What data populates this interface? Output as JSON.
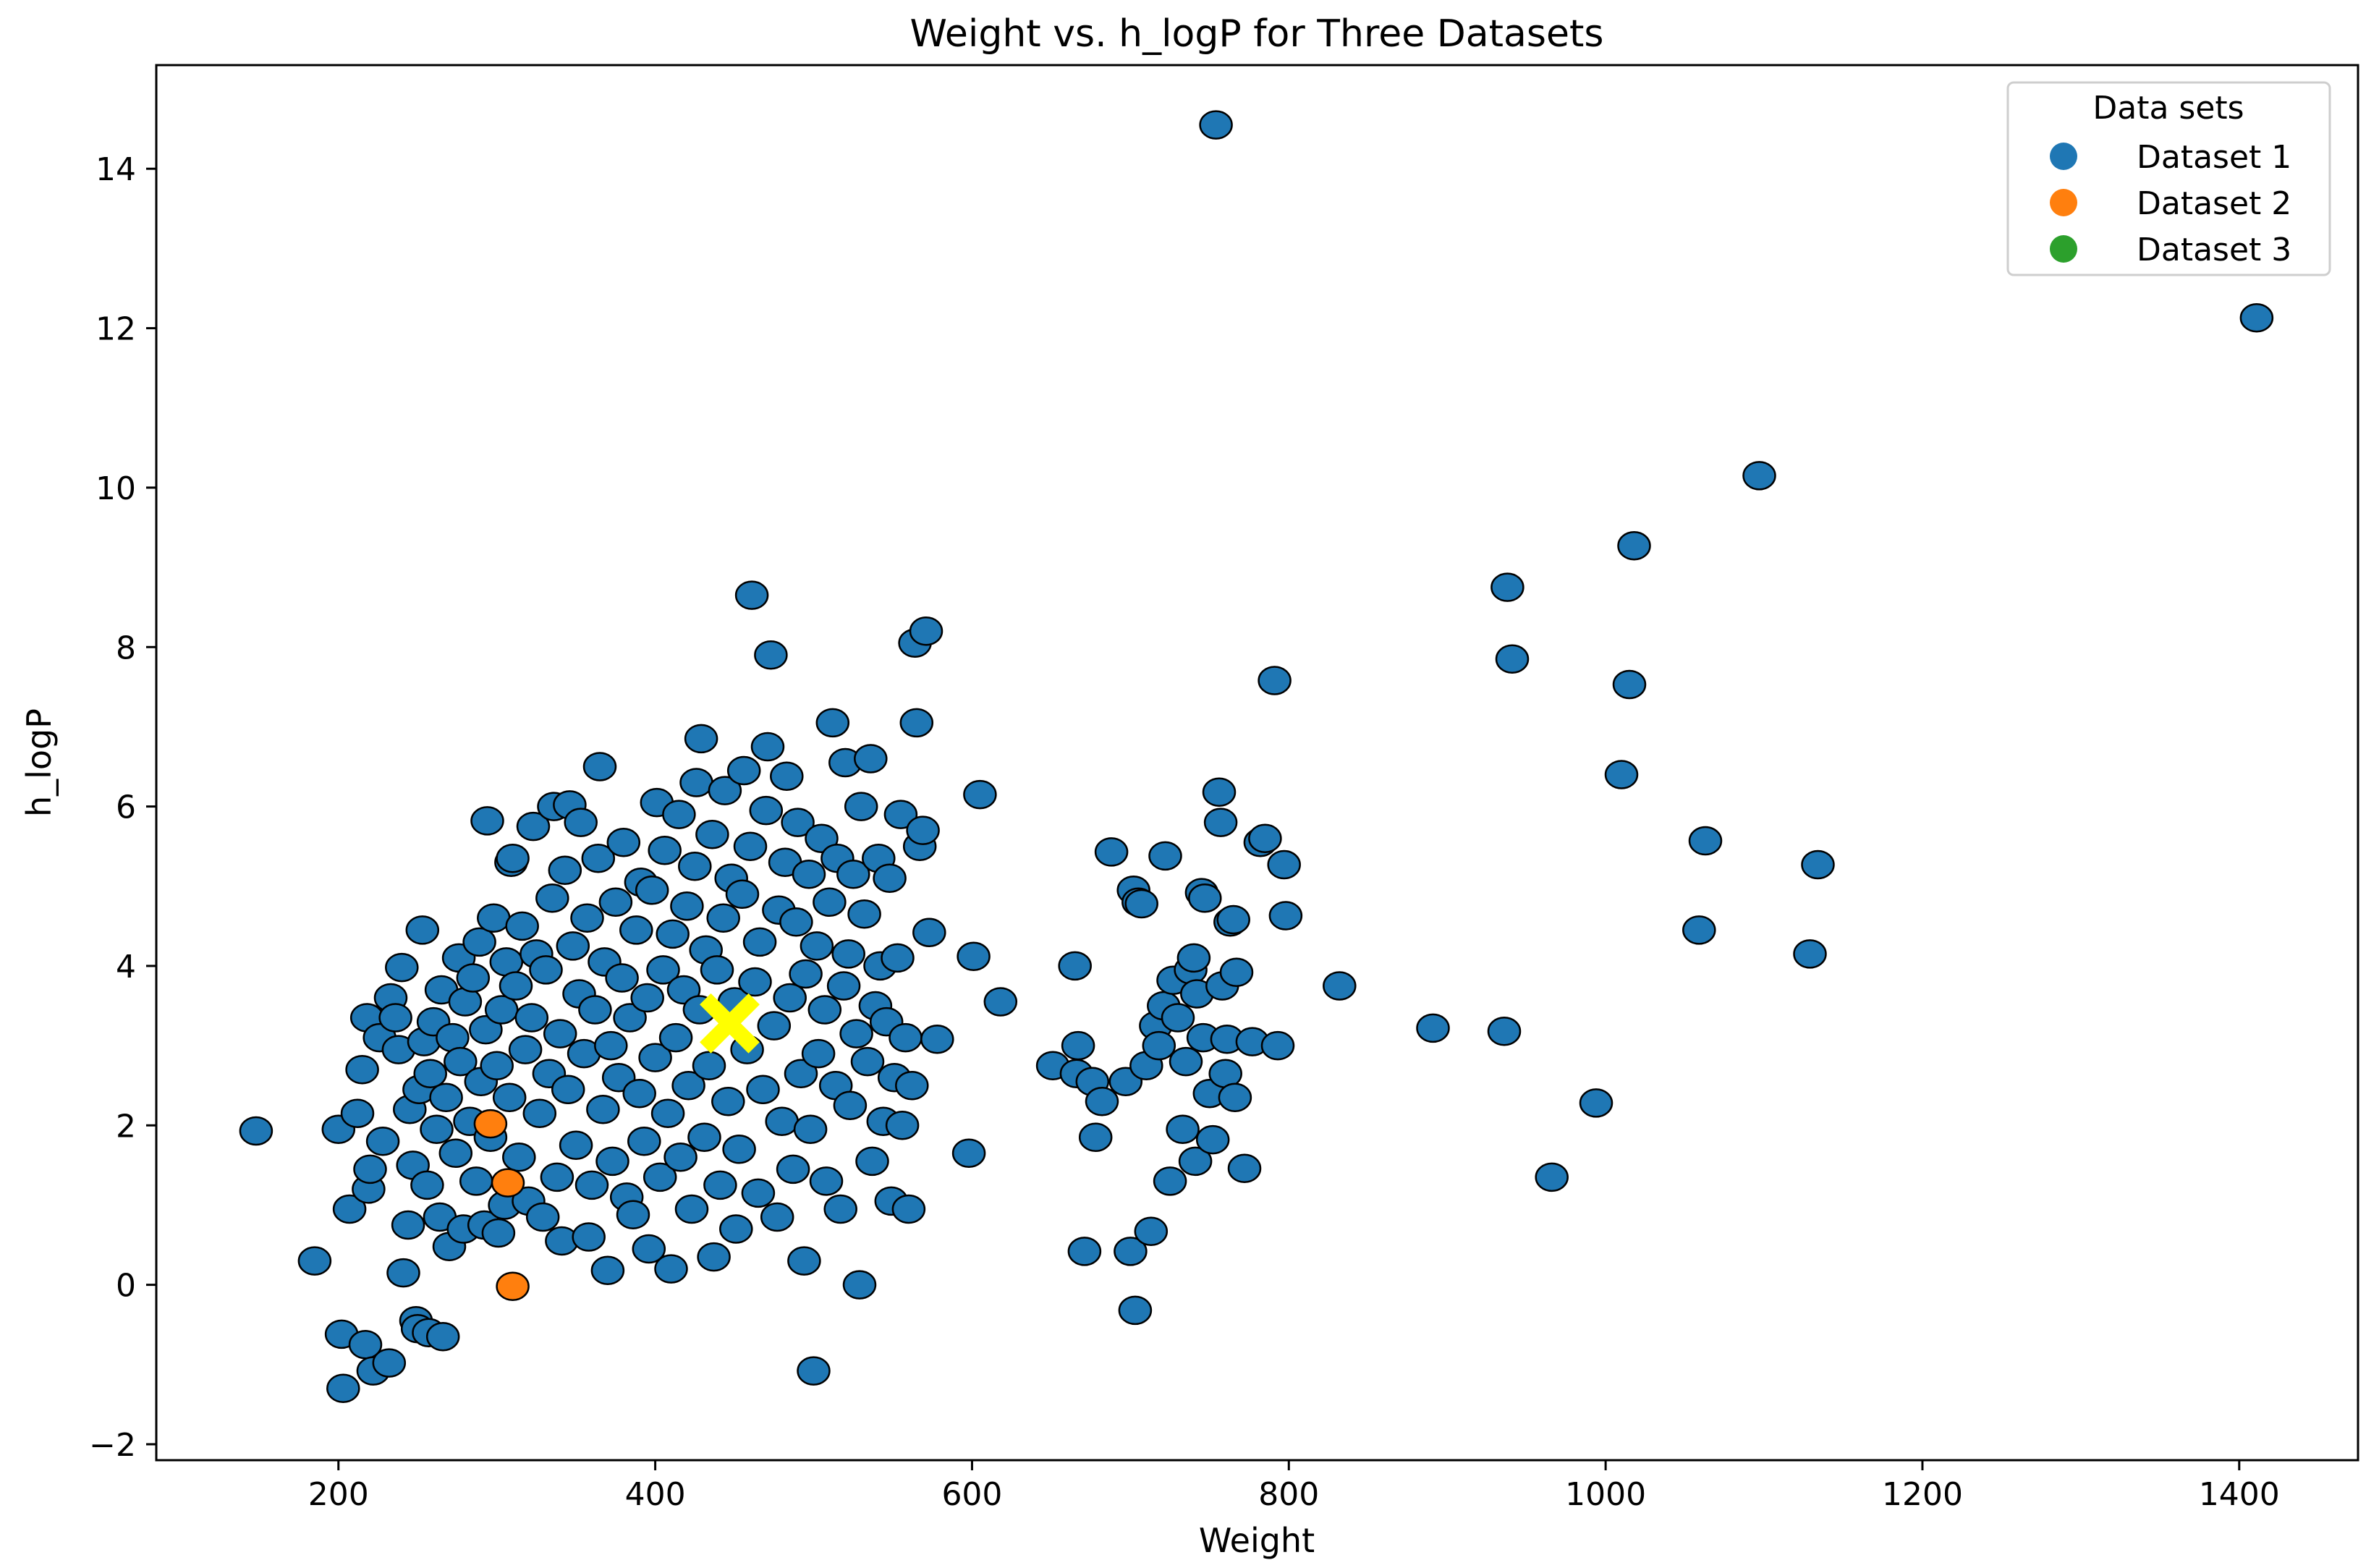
{
  "chart_data": {
    "type": "scatter",
    "title": "Weight vs. h_logP for Three Datasets",
    "xlabel": "Weight",
    "ylabel": "h_logP",
    "xlim": [
      85,
      1475
    ],
    "ylim": [
      -2.2,
      15.3
    ],
    "xticks": [
      200,
      400,
      600,
      800,
      1000,
      1200,
      1400
    ],
    "yticks": [
      -2,
      0,
      2,
      4,
      6,
      8,
      10,
      12,
      14
    ],
    "grid": false,
    "legend": {
      "title": "Data sets",
      "placement": "top-right"
    },
    "series": [
      {
        "name": "Dataset 1",
        "color": "#1f77b4",
        "points": [
          [
            148,
            1.93
          ],
          [
            185,
            0.3
          ],
          [
            200,
            1.95
          ],
          [
            202,
            -0.62
          ],
          [
            203,
            -1.3
          ],
          [
            207,
            0.95
          ],
          [
            212,
            2.15
          ],
          [
            215,
            2.7
          ],
          [
            217,
            -0.75
          ],
          [
            218,
            3.35
          ],
          [
            219,
            1.2
          ],
          [
            220,
            1.45
          ],
          [
            222,
            -1.08
          ],
          [
            226,
            3.1
          ],
          [
            228,
            1.8
          ],
          [
            232,
            -0.98
          ],
          [
            233,
            3.6
          ],
          [
            236,
            3.35
          ],
          [
            238,
            2.95
          ],
          [
            240,
            3.98
          ],
          [
            241,
            0.15
          ],
          [
            244,
            0.75
          ],
          [
            245,
            2.2
          ],
          [
            247,
            1.5
          ],
          [
            249,
            -0.45
          ],
          [
            250,
            -0.55
          ],
          [
            251,
            2.45
          ],
          [
            253,
            4.45
          ],
          [
            254,
            3.05
          ],
          [
            256,
            1.25
          ],
          [
            257,
            -0.6
          ],
          [
            258,
            2.65
          ],
          [
            260,
            3.3
          ],
          [
            262,
            1.95
          ],
          [
            264,
            0.85
          ],
          [
            265,
            3.7
          ],
          [
            266,
            -0.65
          ],
          [
            268,
            2.35
          ],
          [
            270,
            0.48
          ],
          [
            272,
            3.1
          ],
          [
            274,
            1.65
          ],
          [
            276,
            4.1
          ],
          [
            277,
            2.8
          ],
          [
            279,
            0.7
          ],
          [
            280,
            3.55
          ],
          [
            283,
            2.05
          ],
          [
            285,
            3.85
          ],
          [
            287,
            1.3
          ],
          [
            289,
            4.3
          ],
          [
            290,
            2.55
          ],
          [
            292,
            0.75
          ],
          [
            293,
            3.2
          ],
          [
            294,
            5.82
          ],
          [
            296,
            1.85
          ],
          [
            298,
            4.6
          ],
          [
            300,
            2.75
          ],
          [
            301,
            0.65
          ],
          [
            303,
            3.45
          ],
          [
            305,
            1.0
          ],
          [
            306,
            4.05
          ],
          [
            308,
            2.35
          ],
          [
            309,
            5.3
          ],
          [
            310,
            5.35
          ],
          [
            312,
            3.75
          ],
          [
            314,
            1.6
          ],
          [
            316,
            4.5
          ],
          [
            318,
            2.95
          ],
          [
            320,
            1.05
          ],
          [
            322,
            3.35
          ],
          [
            323,
            5.75
          ],
          [
            325,
            4.15
          ],
          [
            327,
            2.15
          ],
          [
            329,
            0.85
          ],
          [
            331,
            3.95
          ],
          [
            333,
            2.65
          ],
          [
            335,
            4.85
          ],
          [
            336,
            6.0
          ],
          [
            338,
            1.35
          ],
          [
            340,
            3.15
          ],
          [
            341,
            0.55
          ],
          [
            343,
            5.2
          ],
          [
            345,
            2.45
          ],
          [
            346,
            6.02
          ],
          [
            348,
            4.25
          ],
          [
            350,
            1.75
          ],
          [
            352,
            3.65
          ],
          [
            353,
            5.8
          ],
          [
            355,
            2.9
          ],
          [
            357,
            4.6
          ],
          [
            358,
            0.6
          ],
          [
            360,
            1.25
          ],
          [
            362,
            3.45
          ],
          [
            364,
            5.35
          ],
          [
            365,
            6.5
          ],
          [
            367,
            2.2
          ],
          [
            368,
            4.05
          ],
          [
            370,
            0.18
          ],
          [
            372,
            3.0
          ],
          [
            373,
            1.55
          ],
          [
            375,
            4.8
          ],
          [
            377,
            2.6
          ],
          [
            379,
            3.85
          ],
          [
            380,
            5.55
          ],
          [
            382,
            1.1
          ],
          [
            384,
            3.35
          ],
          [
            386,
            0.88
          ],
          [
            388,
            4.45
          ],
          [
            390,
            2.4
          ],
          [
            391,
            5.05
          ],
          [
            393,
            1.8
          ],
          [
            395,
            3.6
          ],
          [
            396,
            0.45
          ],
          [
            398,
            4.95
          ],
          [
            400,
            2.85
          ],
          [
            401,
            6.05
          ],
          [
            403,
            1.35
          ],
          [
            405,
            3.95
          ],
          [
            406,
            5.45
          ],
          [
            408,
            2.15
          ],
          [
            410,
            0.2
          ],
          [
            411,
            4.4
          ],
          [
            413,
            3.1
          ],
          [
            415,
            5.9
          ],
          [
            416,
            1.6
          ],
          [
            418,
            3.7
          ],
          [
            420,
            4.75
          ],
          [
            421,
            2.5
          ],
          [
            423,
            0.95
          ],
          [
            425,
            5.25
          ],
          [
            426,
            6.3
          ],
          [
            428,
            3.45
          ],
          [
            429,
            6.85
          ],
          [
            431,
            1.85
          ],
          [
            432,
            4.2
          ],
          [
            434,
            2.75
          ],
          [
            436,
            5.65
          ],
          [
            437,
            0.35
          ],
          [
            439,
            3.95
          ],
          [
            441,
            1.25
          ],
          [
            443,
            4.6
          ],
          [
            444,
            6.2
          ],
          [
            446,
            2.3
          ],
          [
            448,
            5.1
          ],
          [
            450,
            3.55
          ],
          [
            451,
            0.7
          ],
          [
            453,
            1.7
          ],
          [
            455,
            4.9
          ],
          [
            456,
            6.45
          ],
          [
            458,
            2.95
          ],
          [
            460,
            5.5
          ],
          [
            461,
            8.65
          ],
          [
            463,
            3.8
          ],
          [
            465,
            1.15
          ],
          [
            466,
            4.3
          ],
          [
            468,
            2.45
          ],
          [
            470,
            5.95
          ],
          [
            471,
            6.75
          ],
          [
            473,
            7.9
          ],
          [
            475,
            3.25
          ],
          [
            477,
            0.85
          ],
          [
            478,
            4.7
          ],
          [
            480,
            2.05
          ],
          [
            482,
            5.3
          ],
          [
            483,
            6.38
          ],
          [
            485,
            3.6
          ],
          [
            487,
            1.45
          ],
          [
            489,
            4.55
          ],
          [
            490,
            5.8
          ],
          [
            492,
            2.65
          ],
          [
            494,
            0.3
          ],
          [
            495,
            3.9
          ],
          [
            497,
            5.15
          ],
          [
            498,
            1.95
          ],
          [
            500,
            -1.08
          ],
          [
            502,
            4.25
          ],
          [
            503,
            2.9
          ],
          [
            505,
            5.6
          ],
          [
            507,
            3.45
          ],
          [
            508,
            1.3
          ],
          [
            510,
            4.8
          ],
          [
            512,
            7.05
          ],
          [
            514,
            2.5
          ],
          [
            515,
            5.35
          ],
          [
            517,
            0.95
          ],
          [
            519,
            3.75
          ],
          [
            520,
            6.55
          ],
          [
            522,
            4.15
          ],
          [
            523,
            2.25
          ],
          [
            525,
            5.15
          ],
          [
            527,
            3.15
          ],
          [
            529,
            0.0
          ],
          [
            530,
            6.0
          ],
          [
            532,
            4.65
          ],
          [
            534,
            2.8
          ],
          [
            536,
            6.6
          ],
          [
            537,
            1.55
          ],
          [
            539,
            3.5
          ],
          [
            541,
            5.35
          ],
          [
            542,
            4.0
          ],
          [
            544,
            2.05
          ],
          [
            546,
            3.3
          ],
          [
            548,
            5.1
          ],
          [
            549,
            1.05
          ],
          [
            551,
            2.6
          ],
          [
            553,
            4.1
          ],
          [
            555,
            5.9
          ],
          [
            556,
            2.0
          ],
          [
            558,
            3.1
          ],
          [
            560,
            0.95
          ],
          [
            562,
            2.5
          ],
          [
            564,
            8.05
          ],
          [
            565,
            7.05
          ],
          [
            567,
            5.5
          ],
          [
            569,
            5.7
          ],
          [
            571,
            8.2
          ],
          [
            573,
            4.42
          ],
          [
            578,
            3.08
          ],
          [
            598,
            1.65
          ],
          [
            601,
            4.12
          ],
          [
            605,
            6.15
          ],
          [
            618,
            3.55
          ],
          [
            651,
            2.75
          ],
          [
            665,
            4.0
          ],
          [
            666,
            2.65
          ],
          [
            667,
            3.0
          ],
          [
            671,
            0.42
          ],
          [
            676,
            2.55
          ],
          [
            678,
            1.85
          ],
          [
            682,
            2.3
          ],
          [
            688,
            5.43
          ],
          [
            697,
            2.55
          ],
          [
            700,
            0.42
          ],
          [
            702,
            4.95
          ],
          [
            703,
            -0.32
          ],
          [
            705,
            4.8
          ],
          [
            707,
            4.78
          ],
          [
            710,
            2.75
          ],
          [
            713,
            0.67
          ],
          [
            716,
            3.25
          ],
          [
            718,
            3.0
          ],
          [
            721,
            3.5
          ],
          [
            722,
            5.38
          ],
          [
            725,
            1.3
          ],
          [
            727,
            3.82
          ],
          [
            730,
            3.35
          ],
          [
            733,
            1.95
          ],
          [
            735,
            2.8
          ],
          [
            738,
            3.95
          ],
          [
            740,
            4.1
          ],
          [
            741,
            1.55
          ],
          [
            742,
            3.65
          ],
          [
            745,
            4.92
          ],
          [
            746,
            3.1
          ],
          [
            747,
            4.85
          ],
          [
            750,
            2.4
          ],
          [
            752,
            1.82
          ],
          [
            754,
            14.55
          ],
          [
            756,
            6.18
          ],
          [
            757,
            5.8
          ],
          [
            758,
            3.75
          ],
          [
            760,
            2.65
          ],
          [
            761,
            3.08
          ],
          [
            763,
            4.55
          ],
          [
            765,
            4.58
          ],
          [
            766,
            2.35
          ],
          [
            767,
            3.92
          ],
          [
            772,
            1.46
          ],
          [
            777,
            3.05
          ],
          [
            782,
            5.55
          ],
          [
            785,
            5.6
          ],
          [
            791,
            7.58
          ],
          [
            793,
            3.0
          ],
          [
            797,
            5.27
          ],
          [
            798,
            4.63
          ],
          [
            832,
            3.75
          ],
          [
            891,
            3.22
          ],
          [
            936,
            3.18
          ],
          [
            938,
            8.75
          ],
          [
            941,
            7.85
          ],
          [
            966,
            1.35
          ],
          [
            994,
            2.28
          ],
          [
            1010,
            6.4
          ],
          [
            1015,
            7.53
          ],
          [
            1018,
            9.27
          ],
          [
            1059,
            4.45
          ],
          [
            1063,
            5.57
          ],
          [
            1097,
            10.15
          ],
          [
            1129,
            4.15
          ],
          [
            1134,
            5.27
          ],
          [
            1411,
            12.13
          ]
        ]
      },
      {
        "name": "Dataset 2",
        "color": "#ff7f0e",
        "points": [
          [
            296,
            2.02
          ],
          [
            307,
            1.28
          ],
          [
            310,
            -0.02
          ]
        ]
      },
      {
        "name": "Dataset 3",
        "color": "#2ca02c",
        "points": []
      }
    ],
    "marker": {
      "label": "",
      "x": 447,
      "y": 3.28,
      "color": "#ffff00",
      "shape": "X"
    }
  }
}
